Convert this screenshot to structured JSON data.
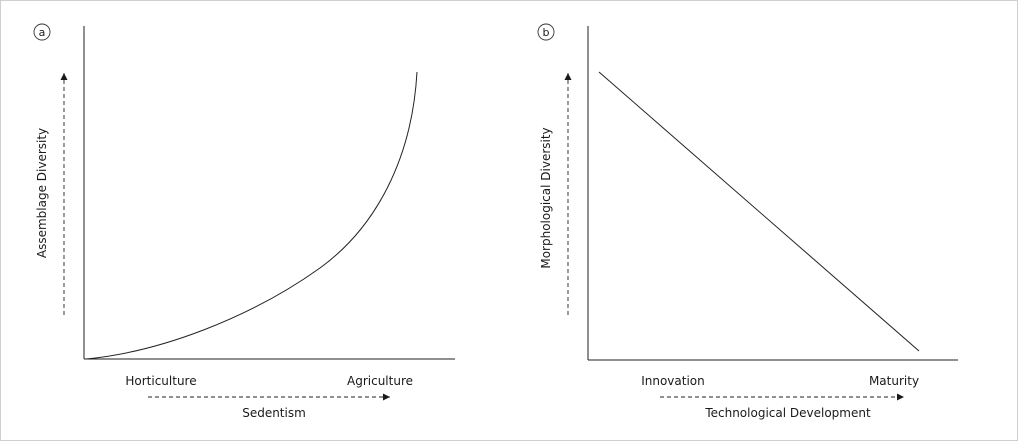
{
  "panels": [
    {
      "badge": "a",
      "y_label": "Assemblage Diversity",
      "x_categories": [
        "Horticulture",
        "Agriculture"
      ],
      "x_label": "Sedentism",
      "curve": "exponential-increase"
    },
    {
      "badge": "b",
      "y_label": "Morphological Diversity",
      "x_categories": [
        "Innovation",
        "Maturity"
      ],
      "x_label": "Technological Development",
      "curve": "linear-decrease"
    }
  ]
}
